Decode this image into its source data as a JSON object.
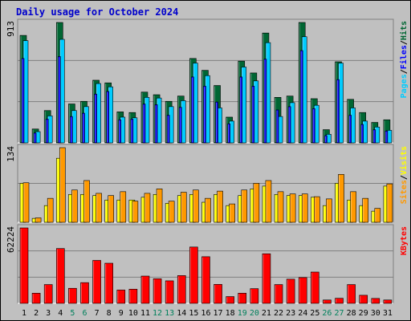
{
  "colors": {
    "background": "#C0C0C0",
    "plot_bg": "#C0C0C0",
    "title": "#0000CC",
    "hits": "#006633",
    "files": "#0000FF",
    "pages": "#00CCFF",
    "visits": "#FFFF00",
    "sites": "#FF9900",
    "kbytes": "#FF0000",
    "weekend": "#00805C",
    "weekday": "#000000"
  },
  "chart_data": [
    {
      "type": "bar",
      "panel": "hits-files-pages",
      "title": "Daily usage for October 2024",
      "ymax_label": "913",
      "ylim": [
        0,
        913
      ],
      "legend": [
        "Pages",
        "/",
        "Files",
        "/",
        "Hits"
      ],
      "categories": [
        "1",
        "2",
        "3",
        "4",
        "5",
        "6",
        "7",
        "8",
        "9",
        "10",
        "11",
        "12",
        "13",
        "14",
        "15",
        "16",
        "17",
        "18",
        "19",
        "20",
        "21",
        "22",
        "23",
        "24",
        "25",
        "26",
        "27",
        "28",
        "29",
        "30",
        "31"
      ],
      "series": [
        {
          "name": "Hits",
          "values": [
            815,
            105,
            245,
            913,
            295,
            315,
            475,
            455,
            235,
            230,
            385,
            365,
            315,
            355,
            640,
            550,
            435,
            195,
            620,
            530,
            833,
            345,
            355,
            913,
            335,
            100,
            615,
            330,
            230,
            155,
            175
          ]
        },
        {
          "name": "Files",
          "values": [
            640,
            75,
            180,
            655,
            200,
            225,
            370,
            390,
            175,
            180,
            295,
            290,
            210,
            270,
            500,
            430,
            310,
            145,
            500,
            430,
            635,
            250,
            275,
            700,
            260,
            55,
            480,
            210,
            140,
            100,
            90
          ]
        },
        {
          "name": "Pages",
          "values": [
            775,
            85,
            205,
            785,
            245,
            275,
            450,
            425,
            195,
            190,
            345,
            340,
            275,
            320,
            605,
            510,
            265,
            165,
            575,
            470,
            760,
            200,
            305,
            805,
            285,
            65,
            605,
            265,
            165,
            120,
            95
          ]
        }
      ]
    },
    {
      "type": "bar",
      "panel": "visits-sites",
      "ymax_label": "134",
      "ylim": [
        0,
        134
      ],
      "legend": [
        "Sites",
        "/",
        "Visits"
      ],
      "categories": [
        "1",
        "2",
        "3",
        "4",
        "5",
        "6",
        "7",
        "8",
        "9",
        "10",
        "11",
        "12",
        "13",
        "14",
        "15",
        "16",
        "17",
        "18",
        "19",
        "20",
        "21",
        "22",
        "23",
        "24",
        "25",
        "26",
        "27",
        "28",
        "29",
        "30",
        "31"
      ],
      "series": [
        {
          "name": "Visits",
          "values": [
            70,
            7,
            30,
            115,
            50,
            50,
            48,
            40,
            40,
            40,
            45,
            50,
            34,
            48,
            50,
            36,
            50,
            30,
            48,
            60,
            65,
            50,
            48,
            48,
            45,
            30,
            70,
            40,
            30,
            20,
            65
          ]
        },
        {
          "name": "Sites",
          "values": [
            71,
            8,
            43,
            134,
            58,
            75,
            52,
            48,
            55,
            38,
            52,
            60,
            38,
            54,
            58,
            43,
            56,
            33,
            58,
            70,
            75,
            55,
            51,
            51,
            46,
            42,
            86,
            55,
            43,
            25,
            69
          ]
        }
      ]
    },
    {
      "type": "bar",
      "panel": "kbytes",
      "ymax_label": "62224",
      "ylim": [
        0,
        62224
      ],
      "legend": [
        "KBytes"
      ],
      "categories": [
        "1",
        "2",
        "3",
        "4",
        "5",
        "6",
        "7",
        "8",
        "9",
        "10",
        "11",
        "12",
        "13",
        "14",
        "15",
        "16",
        "17",
        "18",
        "19",
        "20",
        "21",
        "22",
        "23",
        "24",
        "25",
        "26",
        "27",
        "28",
        "29",
        "30",
        "31"
      ],
      "series": [
        {
          "name": "KBytes",
          "values": [
            62224,
            8390,
            15510,
            45235,
            12430,
            17100,
            35420,
            33100,
            11000,
            11680,
            22500,
            20300,
            18580,
            22900,
            46450,
            38480,
            15650,
            5590,
            8390,
            12140,
            40910,
            15510,
            19940,
            21260,
            25820,
            2790,
            4190,
            15500,
            6680,
            4060,
            2790
          ]
        }
      ]
    }
  ]
}
